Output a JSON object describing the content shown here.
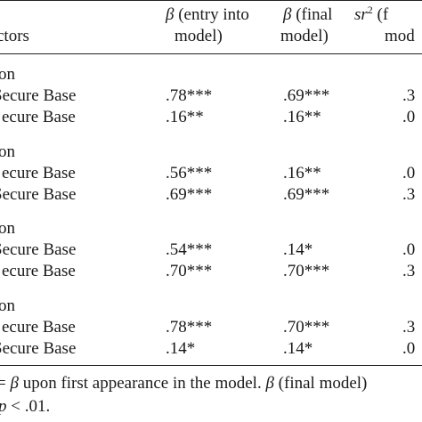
{
  "header": {
    "col1": "ctors",
    "col2_symbol": "β",
    "col2_line1": " (entry into",
    "col2_line2": "model)",
    "col3_symbol": "β",
    "col3_line1": " (final",
    "col3_line2": "model)",
    "col4_symbol": "sr",
    "col4_sup": "2",
    "col4_line1": " (f",
    "col4_line2": "mod"
  },
  "groups": [
    {
      "label": "on",
      "rows": [
        {
          "predictor": "Secure Base",
          "entry": ".78***",
          "final": ".69***",
          "sr2": ".3"
        },
        {
          "predictor": "ecure Base",
          "entry": ".16**",
          "final": ".16**",
          "sr2": ".0"
        }
      ]
    },
    {
      "label": "on",
      "rows": [
        {
          "predictor": "ecure Base",
          "entry": ".56***",
          "final": ".16**",
          "sr2": ".0"
        },
        {
          "predictor": "Secure Base",
          "entry": ".69***",
          "final": ".69***",
          "sr2": ".3"
        }
      ]
    },
    {
      "label": "on",
      "rows": [
        {
          "predictor": "Secure Base",
          "entry": ".54***",
          "final": ".14*",
          "sr2": ".0"
        },
        {
          "predictor": "ecure Base",
          "entry": ".70***",
          "final": ".70***",
          "sr2": ".3"
        }
      ]
    },
    {
      "label": "on",
      "rows": [
        {
          "predictor": "ecure Base",
          "entry": ".78***",
          "final": ".70***",
          "sr2": ".3"
        },
        {
          "predictor": "Secure Base",
          "entry": ".14*",
          "final": ".14*",
          "sr2": ".0"
        }
      ]
    }
  ],
  "note": {
    "line1_a": "= ",
    "line1_b": "β",
    "line1_c": " upon first appearance in the model. ",
    "line1_d": "β",
    "line1_e": " (final model)",
    "line2_a": "p",
    "line2_b": " < .01."
  }
}
